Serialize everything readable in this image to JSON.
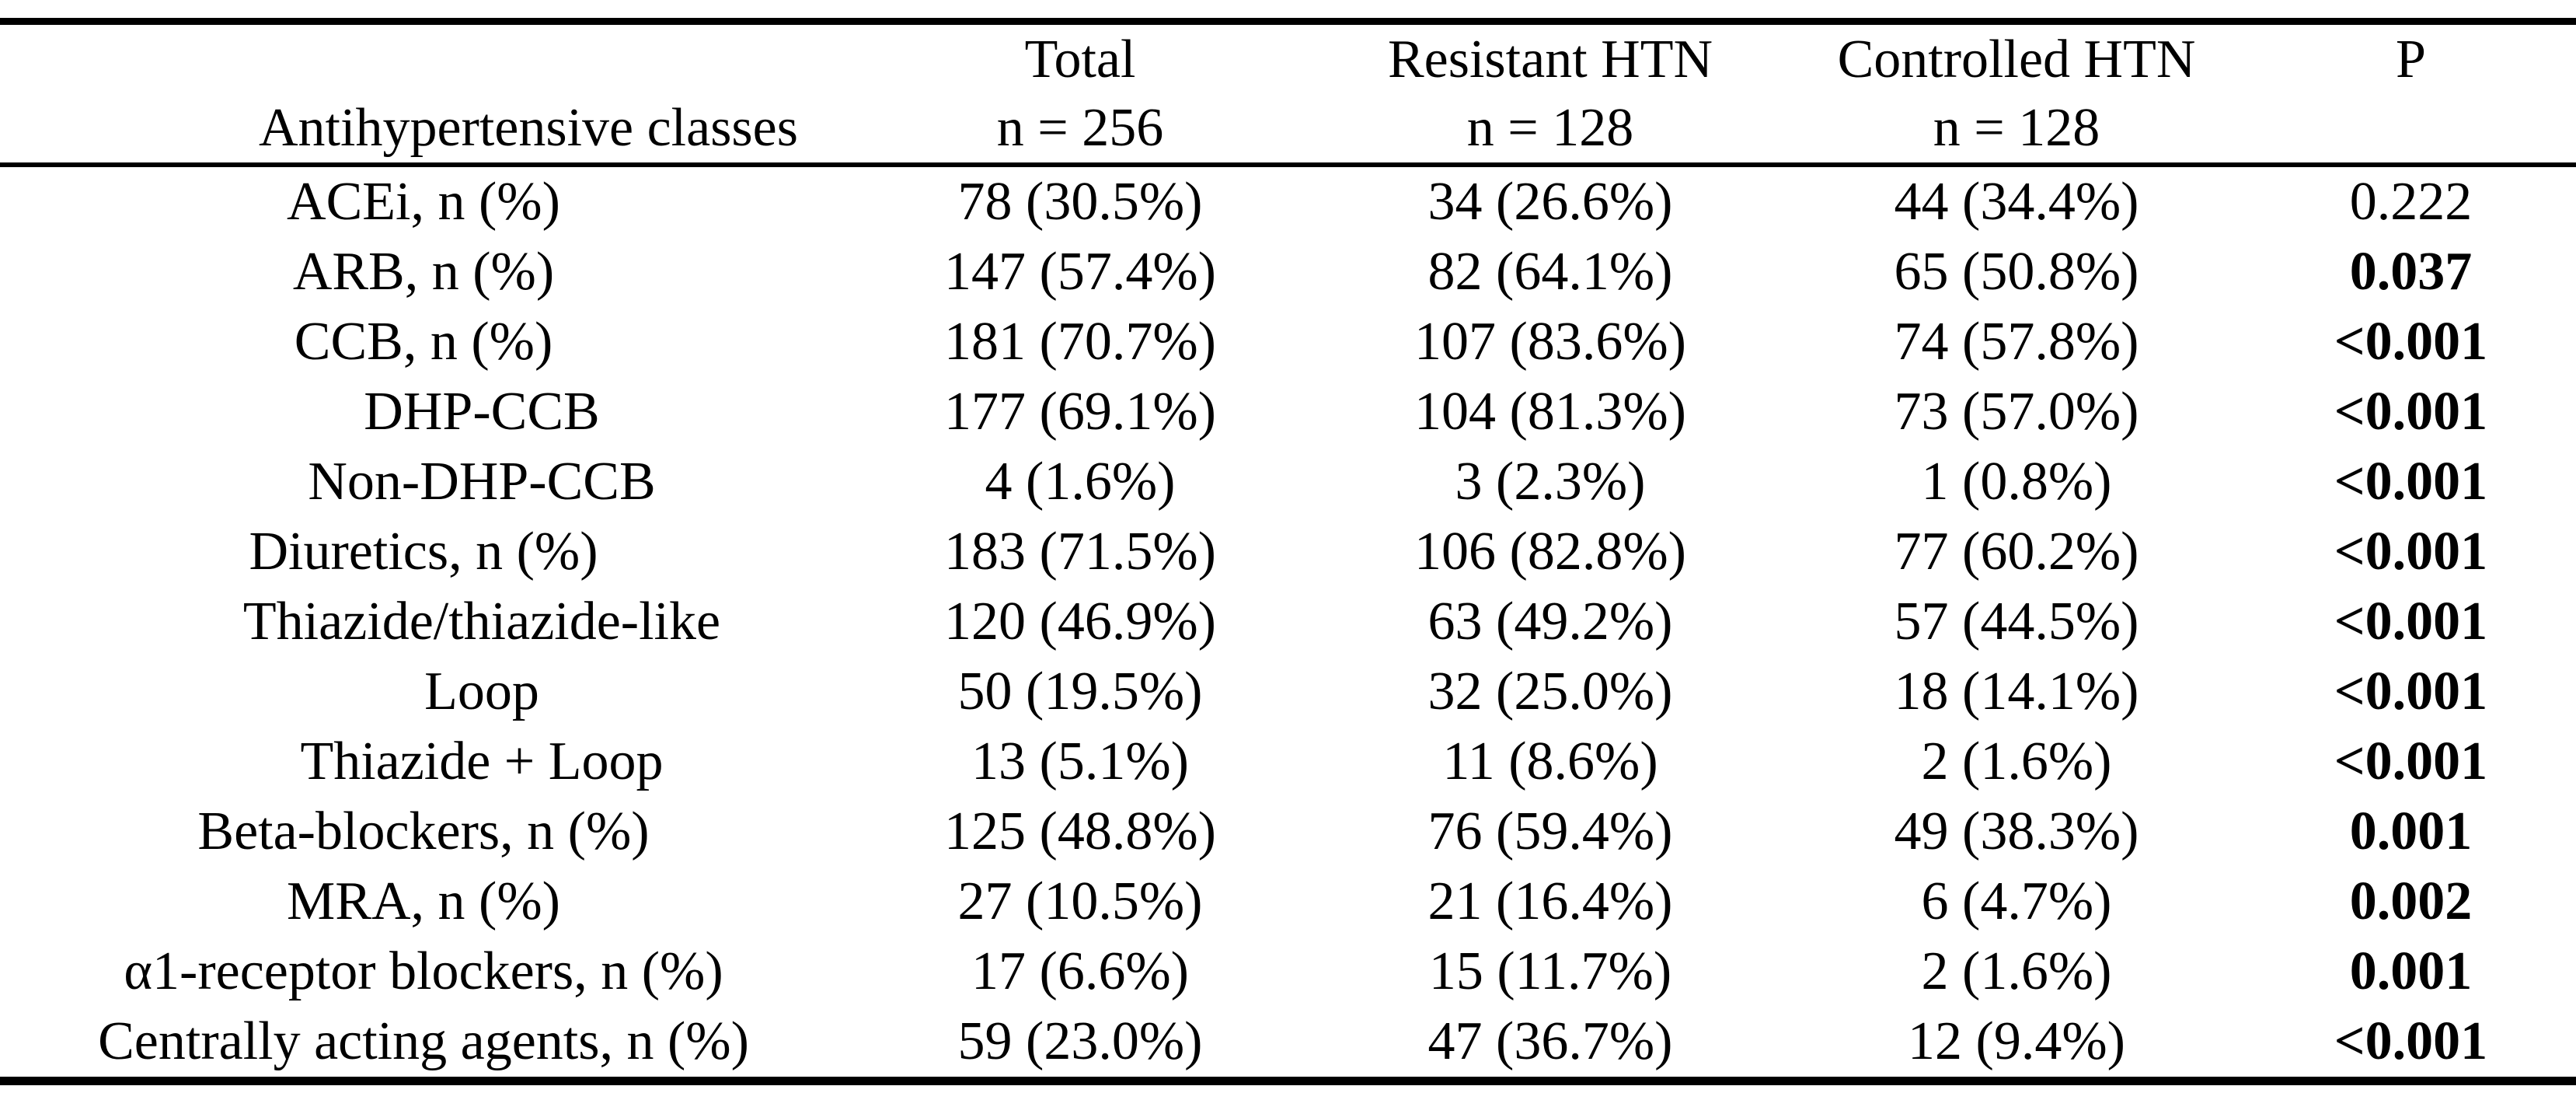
{
  "table": {
    "colors": {
      "text": "#000000",
      "rule": "#000000",
      "background": "#ffffff"
    },
    "columns": [
      {
        "line1": "",
        "line2": "Antihypertensive classes"
      },
      {
        "line1": "Total",
        "line2": "n = 256"
      },
      {
        "line1": "Resistant HTN",
        "line2": "n = 128"
      },
      {
        "line1": "Controlled HTN",
        "line2": "n = 128"
      },
      {
        "line1": "P",
        "line2": ""
      }
    ],
    "rows": [
      {
        "label": "ACEi, n (%)",
        "sub": false,
        "total": "78 (30.5%)",
        "resistant": "34 (26.6%)",
        "controlled": "44 (34.4%)",
        "p": "0.222",
        "p_bold": false
      },
      {
        "label": "ARB, n (%)",
        "sub": false,
        "total": "147 (57.4%)",
        "resistant": "82 (64.1%)",
        "controlled": "65 (50.8%)",
        "p": "0.037",
        "p_bold": true
      },
      {
        "label": "CCB, n (%)",
        "sub": false,
        "total": "181 (70.7%)",
        "resistant": "107 (83.6%)",
        "controlled": "74 (57.8%)",
        "p": "<0.001",
        "p_bold": true
      },
      {
        "label": "DHP-CCB",
        "sub": true,
        "total": "177 (69.1%)",
        "resistant": "104 (81.3%)",
        "controlled": "73 (57.0%)",
        "p": "<0.001",
        "p_bold": true
      },
      {
        "label": "Non-DHP-CCB",
        "sub": true,
        "total": "4 (1.6%)",
        "resistant": "3 (2.3%)",
        "controlled": "1 (0.8%)",
        "p": "<0.001",
        "p_bold": true
      },
      {
        "label": "Diuretics, n (%)",
        "sub": false,
        "total": "183 (71.5%)",
        "resistant": "106 (82.8%)",
        "controlled": "77 (60.2%)",
        "p": "<0.001",
        "p_bold": true
      },
      {
        "label": "Thiazide/thiazide-like",
        "sub": true,
        "total": "120 (46.9%)",
        "resistant": "63 (49.2%)",
        "controlled": "57 (44.5%)",
        "p": "<0.001",
        "p_bold": true
      },
      {
        "label": "Loop",
        "sub": true,
        "total": "50 (19.5%)",
        "resistant": "32 (25.0%)",
        "controlled": "18 (14.1%)",
        "p": "<0.001",
        "p_bold": true
      },
      {
        "label": "Thiazide + Loop",
        "sub": true,
        "total": "13 (5.1%)",
        "resistant": "11 (8.6%)",
        "controlled": "2 (1.6%)",
        "p": "<0.001",
        "p_bold": true
      },
      {
        "label": "Beta-blockers, n (%)",
        "sub": false,
        "total": "125 (48.8%)",
        "resistant": "76 (59.4%)",
        "controlled": "49 (38.3%)",
        "p": "0.001",
        "p_bold": true
      },
      {
        "label": "MRA, n (%)",
        "sub": false,
        "total": "27 (10.5%)",
        "resistant": "21 (16.4%)",
        "controlled": "6 (4.7%)",
        "p": "0.002",
        "p_bold": true
      },
      {
        "label": "α1-receptor blockers, n (%)",
        "sub": false,
        "total": "17 (6.6%)",
        "resistant": "15 (11.7%)",
        "controlled": "2 (1.6%)",
        "p": "0.001",
        "p_bold": true
      },
      {
        "label": "Centrally acting agents, n (%)",
        "sub": false,
        "total": "59 (23.0%)",
        "resistant": "47 (36.7%)",
        "controlled": "12 (9.4%)",
        "p": "<0.001",
        "p_bold": true
      }
    ]
  }
}
